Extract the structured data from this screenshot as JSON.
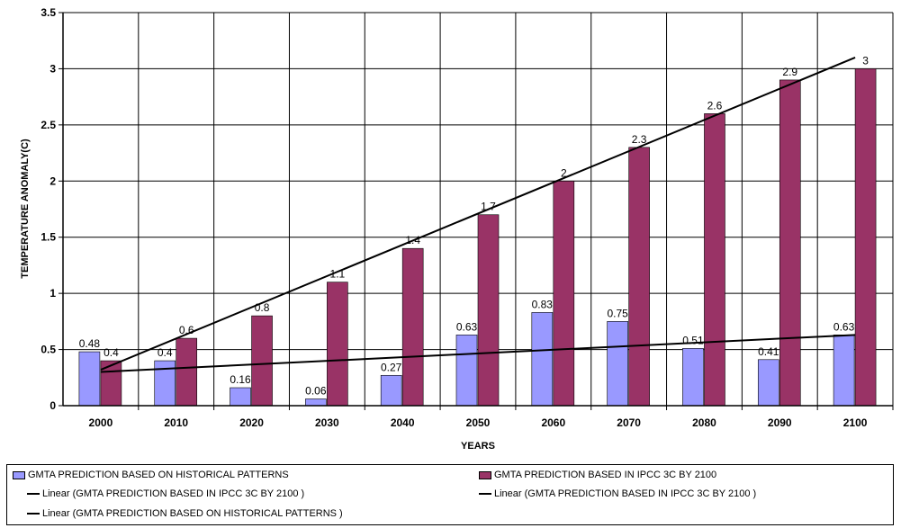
{
  "chart_data": {
    "type": "bar",
    "title": "",
    "xlabel": "YEARS",
    "ylabel": "TEMPERATURE ANOMALY(C)",
    "ylim": [
      0,
      3.5
    ],
    "yticks": [
      "0",
      "0.5",
      "1",
      "1.5",
      "2",
      "2.5",
      "3",
      "3.5"
    ],
    "grid": true,
    "categories": [
      "2000",
      "2010",
      "2020",
      "2030",
      "2040",
      "2050",
      "2060",
      "2070",
      "2080",
      "2090",
      "2100"
    ],
    "series": [
      {
        "name": "GMTA PREDICTION BASED ON HISTORICAL PATTERNS",
        "color": "#9999ff",
        "values": [
          0.48,
          0.4,
          0.16,
          0.06,
          0.27,
          0.63,
          0.83,
          0.75,
          0.51,
          0.41,
          0.63
        ],
        "labels": [
          "0.48",
          "0.4",
          "0.16",
          "0.06",
          "0.27",
          "0.63",
          "0.83",
          "0.75",
          "0.51",
          "0.41",
          "0.63"
        ]
      },
      {
        "name": "GMTA PREDICTION BASED IN IPCC 3C BY 2100",
        "color": "#993366",
        "values": [
          0.4,
          0.6,
          0.8,
          1.1,
          1.4,
          1.7,
          2.0,
          2.3,
          2.6,
          2.9,
          3.0
        ],
        "labels": [
          "0.4",
          "0.6",
          "0.8",
          "1.1",
          "1.4",
          "1.7",
          "2",
          "2.3",
          "2.6",
          "2.9",
          "3"
        ]
      }
    ],
    "trendlines": [
      {
        "name": "Linear (GMTA PREDICTION BASED IN IPCC 3C BY 2100 )",
        "color": "#000000",
        "from": 0.32,
        "to": 3.1
      },
      {
        "name": "Linear (GMTA  PREDICTION BASED ON HISTORICAL PATTERNS )",
        "color": "#000000",
        "from": 0.3,
        "to": 0.63
      }
    ]
  },
  "legend": {
    "items": [
      {
        "label": "GMTA  PREDICTION BASED ON HISTORICAL PATTERNS",
        "kind": "bar",
        "color": "#9999ff"
      },
      {
        "label": "GMTA PREDICTION BASED IN IPCC 3C BY 2100",
        "kind": "bar",
        "color": "#993366"
      },
      {
        "label": "Linear (GMTA PREDICTION BASED IN IPCC 3C BY 2100 )",
        "kind": "line",
        "color": "#000000"
      },
      {
        "label": "Linear (GMTA PREDICTION BASED IN IPCC 3C BY 2100 )",
        "kind": "line",
        "color": "#000000"
      },
      {
        "label": "Linear (GMTA  PREDICTION BASED ON HISTORICAL PATTERNS )",
        "kind": "line",
        "color": "#000000"
      }
    ]
  }
}
